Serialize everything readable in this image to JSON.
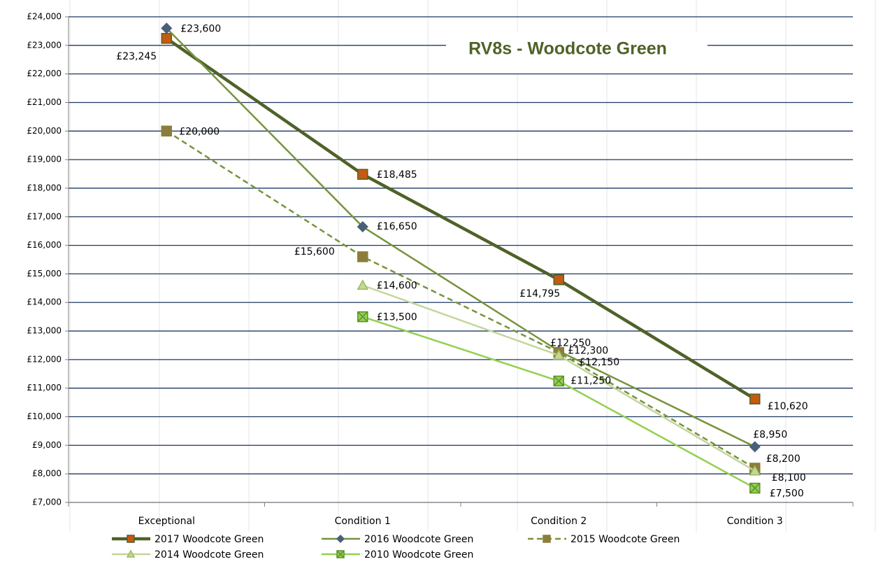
{
  "chart_data": {
    "type": "line",
    "title": "RV8s - Woodcote Green",
    "categories": [
      "Exceptional",
      "Condition 1",
      "Condition 2",
      "Condition 3"
    ],
    "ylim": [
      7000,
      24000
    ],
    "yticks": [
      {
        "value": 7000,
        "label": "£7,000"
      },
      {
        "value": 8000,
        "label": "£8,000"
      },
      {
        "value": 9000,
        "label": "£9,000"
      },
      {
        "value": 10000,
        "label": "£10,000"
      },
      {
        "value": 11000,
        "label": "£11,000"
      },
      {
        "value": 12000,
        "label": "£12,000"
      },
      {
        "value": 13000,
        "label": "£13,000"
      },
      {
        "value": 14000,
        "label": "£14,000"
      },
      {
        "value": 15000,
        "label": "£15,000"
      },
      {
        "value": 16000,
        "label": "£16,000"
      },
      {
        "value": 17000,
        "label": "£17,000"
      },
      {
        "value": 18000,
        "label": "£18,000"
      },
      {
        "value": 19000,
        "label": "£19,000"
      },
      {
        "value": 20000,
        "label": "£20,000"
      },
      {
        "value": 21000,
        "label": "£21,000"
      },
      {
        "value": 22000,
        "label": "£22,000"
      },
      {
        "value": 23000,
        "label": "£23,000"
      },
      {
        "value": 24000,
        "label": "£24,000"
      }
    ],
    "grid": true,
    "legend": "bottom",
    "series": [
      {
        "name": "2017 Woodcote Green",
        "color": "#4f6228",
        "marker": "square",
        "values": [
          23245,
          18485,
          14795,
          10620
        ],
        "value_labels": [
          "£23,245",
          "£18,485",
          "£14,795",
          "£10,620"
        ]
      },
      {
        "name": "2016 Woodcote Green",
        "color": "#77933c",
        "marker": "diamond",
        "values": [
          23600,
          16650,
          12300,
          8950
        ],
        "value_labels": [
          "£23,600",
          "£16,650",
          "£12,300",
          "£8,950"
        ]
      },
      {
        "name": "2015 Woodcote Green",
        "color": "#77933c",
        "marker": "square",
        "dashed": true,
        "values": [
          20000,
          15600,
          12250,
          8200
        ],
        "value_labels": [
          "£20,000",
          "£15,600",
          "£12,250",
          "£8,200"
        ]
      },
      {
        "name": "2014 Woodcote Green",
        "color": "#c3d69b",
        "marker": "triangle",
        "values": [
          null,
          14600,
          12150,
          8100
        ],
        "value_labels": [
          null,
          "£14,600",
          "£12,150",
          "£8,100"
        ]
      },
      {
        "name": "2010 Woodcote Green",
        "color": "#92d050",
        "marker": "x",
        "values": [
          null,
          13500,
          11250,
          7500
        ],
        "value_labels": [
          null,
          "£13,500",
          "£11,250",
          "£7,500"
        ]
      }
    ]
  }
}
